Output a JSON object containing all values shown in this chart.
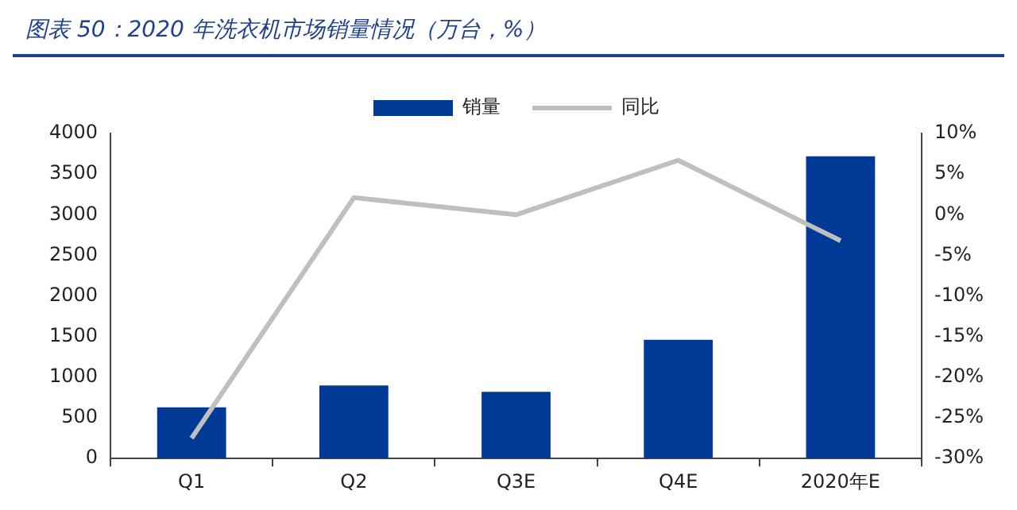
{
  "chart_data": {
    "type": "bar",
    "title": "图表 50：2020 年洗衣机市场销量情况（万台，%）",
    "categories": [
      "Q1",
      "Q2",
      "Q3E",
      "Q4E",
      "2020年E"
    ],
    "series": [
      {
        "name": "销量",
        "color": "#003a96",
        "values": [
          630,
          900,
          820,
          1460,
          3720
        ]
      },
      {
        "name": "同比",
        "type": "line",
        "axis": "y2",
        "color": "#bfbfbf",
        "marker": "none",
        "values": [
          -27.5,
          2.1,
          0,
          6.7,
          -3.2
        ]
      }
    ],
    "ylim": [
      0,
      4000
    ],
    "yticks": [
      0,
      500,
      1000,
      1500,
      2000,
      2500,
      3000,
      3500,
      4000
    ],
    "y2lim": [
      -30,
      10
    ],
    "y2ticks": [
      {
        "value": -30,
        "label": "-30%"
      },
      {
        "value": -25,
        "label": "-25%"
      },
      {
        "value": -20,
        "label": "-20%"
      },
      {
        "value": -15,
        "label": "-15%"
      },
      {
        "value": -10,
        "label": "-10%"
      },
      {
        "value": -5,
        "label": "-5%"
      },
      {
        "value": 0,
        "label": "0%"
      },
      {
        "value": 5,
        "label": "5%"
      },
      {
        "value": 10,
        "label": "10%"
      }
    ],
    "grid": false,
    "legend": "top"
  }
}
